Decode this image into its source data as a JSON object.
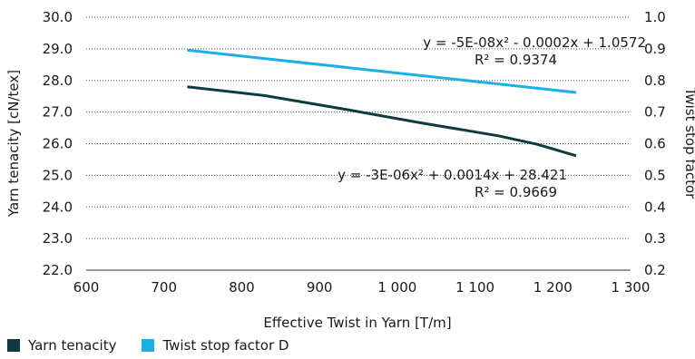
{
  "chart_data": {
    "type": "line",
    "xlabel": "Effective Twist in Yarn [T/m]",
    "ylabel": "Yarn tenacity [cN/tex]",
    "y2label": "Twist stop factor",
    "xlim": [
      600,
      1300
    ],
    "ylim": [
      22.0,
      30.0
    ],
    "y2lim": [
      0.2,
      1.0
    ],
    "x_ticks": [
      "600",
      "700",
      "800",
      "900",
      "1 000",
      "1 100",
      "1 200",
      "1 300"
    ],
    "y_ticks": [
      "22.0",
      "23.0",
      "24.0",
      "25.0",
      "26.0",
      "27.0",
      "28.0",
      "29.0",
      "30.0"
    ],
    "y2_ticks": [
      "0.2",
      "0.3",
      "0.4",
      "0.5",
      "0.6",
      "0.7",
      "0.8",
      "0.9",
      "1.0"
    ],
    "grid": "horizontal dotted",
    "legend_position": "bottom-left",
    "series": [
      {
        "name": "Yarn tenacity",
        "axis": "left",
        "color": "#0d3b3e",
        "x": [
          730,
          830,
          930,
          1030,
          1130,
          1180,
          1230
        ],
        "y": [
          27.8,
          27.52,
          27.1,
          26.66,
          26.25,
          25.98,
          25.62
        ]
      },
      {
        "name": "Twist stop factor D",
        "axis": "right",
        "color": "#1ab0e3",
        "x": [
          730,
          1230
        ],
        "y": [
          0.896,
          0.762
        ]
      }
    ],
    "annotations": [
      {
        "id": "top",
        "line1": "y = -5E-08x² - 0.0002x + 1.0572",
        "line2": "R² = 0.9374"
      },
      {
        "id": "bottom",
        "line1": "y = -3E-06x² + 0.0014x + 28.421",
        "line2": "R² = 0.9669"
      }
    ]
  }
}
